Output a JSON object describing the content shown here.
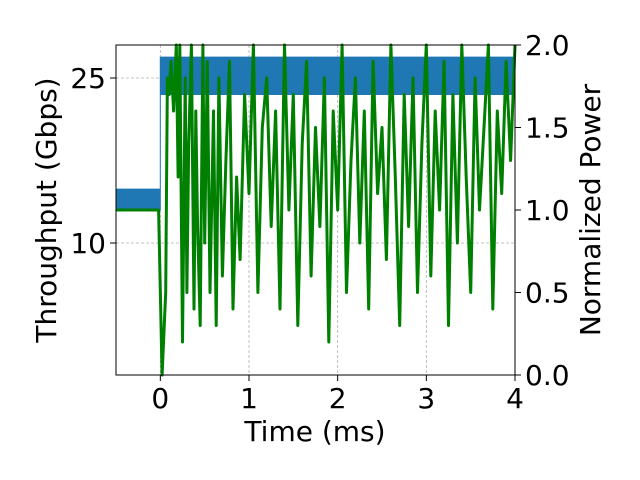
{
  "chart_data": {
    "type": "line",
    "xlabel": "Time (ms)",
    "ylabel_left": "Throughput (Gbps)",
    "ylabel_right": "Normalized Power",
    "xlim": [
      -0.5,
      4.0
    ],
    "ylim_left": [
      -2,
      28
    ],
    "ylim_right": [
      0.0,
      2.0
    ],
    "x_ticks": [
      0,
      1,
      2,
      3,
      4
    ],
    "y_ticks_left": [
      10,
      25
    ],
    "y_ticks_right": [
      0.0,
      0.5,
      1.0,
      1.5,
      2.0
    ],
    "x_tick_labels": [
      "0",
      "1",
      "2",
      "3",
      "4"
    ],
    "y_tick_labels_left": [
      "10",
      "25"
    ],
    "y_tick_labels_right": [
      "0.0",
      "0.5",
      "1.0",
      "1.5",
      "2.0"
    ],
    "grid": true,
    "colors": {
      "throughput": "#1f77b4",
      "power": "#008000",
      "grid": "#b0b0b0"
    },
    "series": [
      {
        "axis": "left",
        "style": "band",
        "x": [
          -0.5,
          0.0,
          0.0,
          4.0
        ],
        "low": [
          13.0,
          13.0,
          23.5,
          23.5
        ],
        "high": [
          14.9,
          14.9,
          26.9,
          26.9
        ]
      },
      {
        "axis": "right",
        "style": "line",
        "x": [
          -0.5,
          -0.02,
          0.02,
          0.06,
          0.08,
          0.1,
          0.12,
          0.15,
          0.18,
          0.2,
          0.22,
          0.25,
          0.28,
          0.3,
          0.32,
          0.35,
          0.38,
          0.4,
          0.42,
          0.45,
          0.48,
          0.5,
          0.53,
          0.56,
          0.6,
          0.63,
          0.66,
          0.7,
          0.74,
          0.78,
          0.82,
          0.86,
          0.9,
          0.95,
          1.0,
          1.05,
          1.1,
          1.15,
          1.2,
          1.25,
          1.3,
          1.35,
          1.4,
          1.45,
          1.5,
          1.55,
          1.6,
          1.65,
          1.7,
          1.75,
          1.8,
          1.85,
          1.9,
          1.95,
          2.0,
          2.05,
          2.1,
          2.15,
          2.2,
          2.25,
          2.3,
          2.35,
          2.4,
          2.45,
          2.5,
          2.55,
          2.6,
          2.65,
          2.7,
          2.75,
          2.8,
          2.85,
          2.9,
          2.95,
          3.0,
          3.05,
          3.1,
          3.15,
          3.2,
          3.25,
          3.3,
          3.35,
          3.4,
          3.45,
          3.5,
          3.55,
          3.6,
          3.65,
          3.7,
          3.75,
          3.8,
          3.85,
          3.9,
          3.95,
          4.0
        ],
        "y": [
          1.0,
          1.0,
          0.0,
          0.5,
          1.8,
          1.7,
          1.9,
          1.6,
          2.0,
          1.2,
          2.0,
          0.2,
          1.8,
          0.5,
          1.4,
          2.0,
          0.4,
          1.6,
          0.9,
          0.3,
          2.0,
          0.8,
          1.9,
          0.5,
          1.6,
          0.3,
          1.8,
          0.6,
          1.3,
          1.9,
          0.4,
          1.2,
          0.7,
          1.7,
          1.1,
          2.0,
          0.5,
          1.5,
          1.8,
          0.9,
          1.6,
          0.4,
          2.0,
          1.0,
          1.7,
          0.3,
          1.4,
          1.9,
          0.6,
          1.5,
          0.9,
          1.8,
          0.2,
          1.6,
          1.0,
          2.0,
          0.5,
          1.3,
          1.8,
          0.8,
          1.6,
          0.4,
          1.9,
          1.1,
          1.5,
          0.7,
          2.0,
          1.2,
          0.3,
          1.7,
          0.9,
          1.8,
          0.5,
          1.4,
          2.0,
          0.6,
          1.6,
          1.0,
          1.9,
          0.3,
          1.7,
          0.8,
          2.0,
          1.2,
          0.5,
          1.8,
          1.0,
          1.5,
          2.0,
          0.4,
          1.6,
          1.1,
          1.9,
          1.3,
          2.0
        ]
      }
    ]
  }
}
